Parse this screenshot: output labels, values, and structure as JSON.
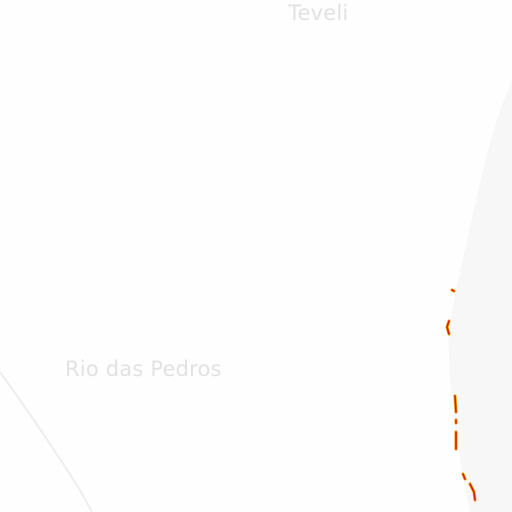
{
  "map": {
    "places": {
      "teveli": "Teveli",
      "rio_das_pedros": "Rio das Pedros"
    },
    "colors": {
      "background": "#fefefe",
      "land_shade": "#f8f8f8",
      "road_faint": "#f0f0f0",
      "label": "#e2e2e2",
      "highway_red": "#d41e00",
      "highway_orange": "#f09a00"
    }
  }
}
